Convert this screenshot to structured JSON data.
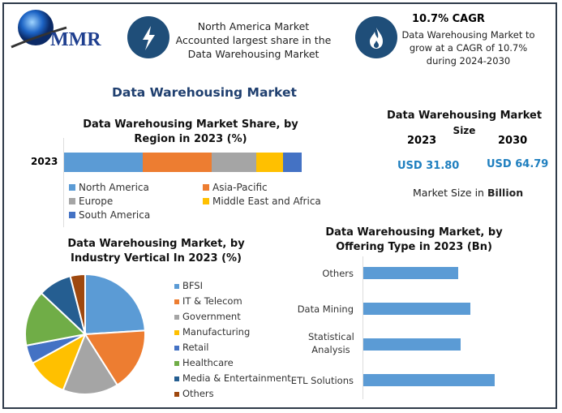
{
  "header": {
    "logo_text": "MMR",
    "highlight_1": [
      "North America Market",
      "Accounted largest share in the",
      "Data Warehousing Market"
    ],
    "highlight_1_icon": "lightning-icon",
    "highlight_2_title": "10.7% CAGR",
    "highlight_2": [
      "Data Warehousing Market to",
      "grow at a CAGR of 10.7%",
      "during 2024-2030"
    ],
    "highlight_2_icon": "flame-icon"
  },
  "main_title": "Data Warehousing Market",
  "market_size": {
    "title_line1": "Data Warehousing Market",
    "title_line2": "Size",
    "year_a": "2023",
    "year_b": "2030",
    "value_a": "USD 31.80",
    "value_b": "USD 64.79",
    "note_prefix": "Market Size in ",
    "note_bold": "Billion"
  },
  "colors": {
    "accent": "#1f4e79",
    "usd": "#1f7fbf"
  },
  "chart_data": [
    {
      "type": "bar",
      "orientation": "horizontal-stacked",
      "title": "Data Warehousing Market Share, by Region in 2023 (%)",
      "categories": [
        "2023"
      ],
      "series": [
        {
          "name": "North America",
          "values": [
            33
          ],
          "color": "#5b9bd5"
        },
        {
          "name": "Asia-Pacific",
          "values": [
            29
          ],
          "color": "#ed7d31"
        },
        {
          "name": "Europe",
          "values": [
            19
          ],
          "color": "#a5a5a5"
        },
        {
          "name": "Middle East and Africa",
          "values": [
            11
          ],
          "color": "#ffc000"
        },
        {
          "name": "South America",
          "values": [
            8
          ],
          "color": "#4472c4"
        }
      ],
      "legend": "bottom"
    },
    {
      "type": "pie",
      "title": "Data Warehousing Market, by Industry Vertical In 2023 (%)",
      "categories": [
        "BFSI",
        "IT & Telecom",
        "Government",
        "Manufacturing",
        "Retail",
        "Healthcare",
        "Media & Entertainment",
        "Others"
      ],
      "values": [
        24,
        17,
        15,
        11,
        5,
        15,
        9,
        4
      ],
      "colors": [
        "#5b9bd5",
        "#ed7d31",
        "#a5a5a5",
        "#ffc000",
        "#4472c4",
        "#70ad47",
        "#255e91",
        "#9e480e"
      ],
      "legend": "right"
    },
    {
      "type": "bar",
      "orientation": "horizontal",
      "title": "Data Warehousing Market, by Offering Type in 2023 (Bn)",
      "categories": [
        "Others",
        "Data Mining",
        "Statistical Analysis",
        "ETL Solutions"
      ],
      "values": [
        7.0,
        7.9,
        7.2,
        9.7
      ],
      "color": "#5b9bd5"
    }
  ]
}
